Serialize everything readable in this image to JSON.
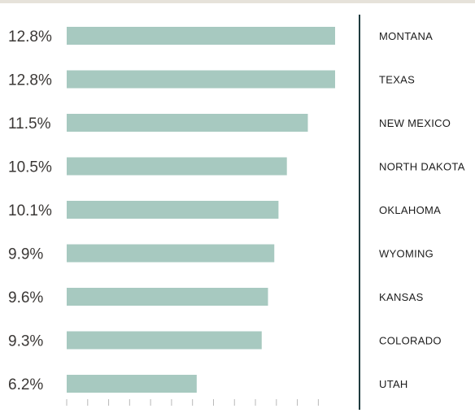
{
  "chart_data": {
    "type": "bar",
    "orientation": "horizontal",
    "categories": [
      "MONTANA",
      "TEXAS",
      "NEW MEXICO",
      "NORTH DAKOTA",
      "OKLAHOMA",
      "WYOMING",
      "KANSAS",
      "COLORADO",
      "UTAH"
    ],
    "values": [
      12.8,
      12.8,
      11.5,
      10.5,
      10.1,
      9.9,
      9.6,
      9.3,
      6.2
    ],
    "value_labels": [
      "12.8%",
      "12.8%",
      "11.5%",
      "10.5%",
      "10.1%",
      "9.9%",
      "9.6%",
      "9.3%",
      "6.2%"
    ],
    "xlim": [
      0,
      14
    ],
    "title": "",
    "xlabel": "",
    "ylabel": "",
    "grid": false,
    "colors": {
      "bar": "#a7c9c0",
      "divider": "#1f3b3f",
      "tick": "#b8b8b8",
      "top_rule": "#e6e2da"
    }
  }
}
